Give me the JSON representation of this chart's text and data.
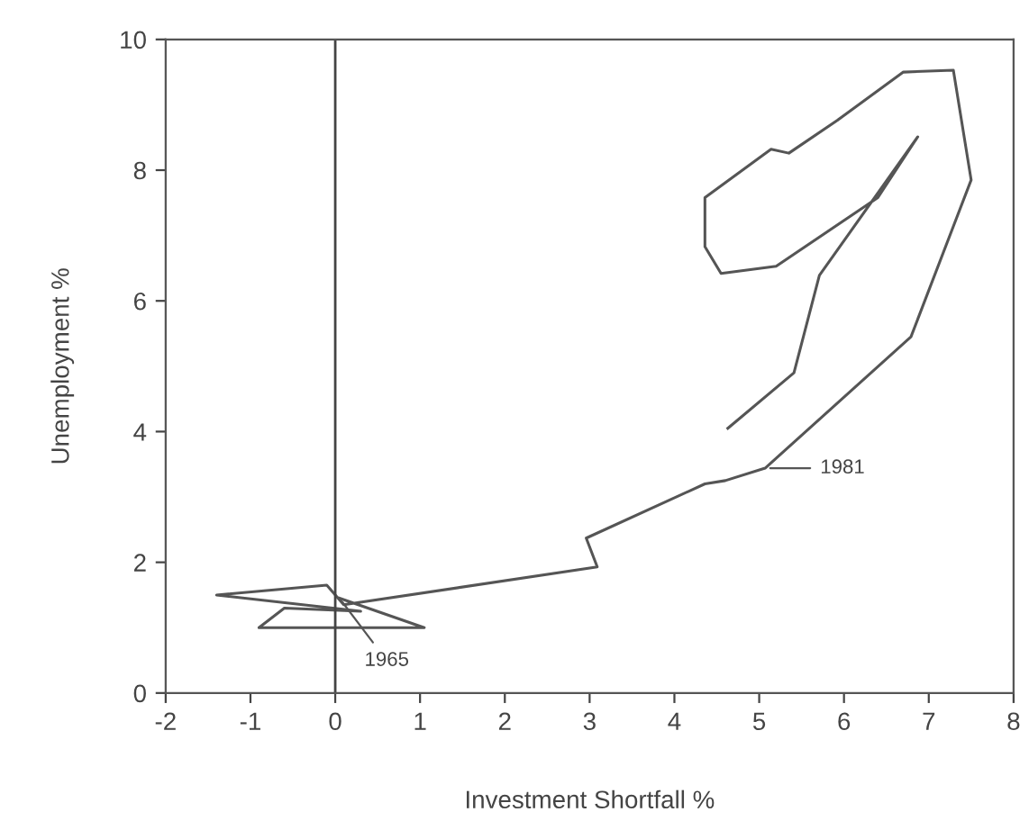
{
  "chart_data": {
    "type": "line",
    "xlabel": "Investment Shortfall %",
    "ylabel": "Unemployment %",
    "xlim": [
      -2,
      8
    ],
    "ylim": [
      0,
      10
    ],
    "xticks": [
      -2,
      -1,
      0,
      1,
      2,
      3,
      4,
      5,
      6,
      7,
      8
    ],
    "yticks": [
      0,
      2,
      4,
      6,
      8,
      10
    ],
    "grid": false,
    "legend": false,
    "marker": "none",
    "line_style": "solid",
    "ref_lines": [
      {
        "axis": "x",
        "value": 0,
        "color": "#444444"
      }
    ],
    "annotations": [
      {
        "text": "1965",
        "x": 0.05,
        "y": 1.45
      },
      {
        "text": "1981",
        "x": 5.07,
        "y": 3.44
      }
    ],
    "series": [
      {
        "color": "#555555",
        "x": [
          0.05,
          1.05,
          -0.9,
          -0.6,
          0.3,
          -1.4,
          -0.1,
          0.1,
          3.09,
          2.96,
          4.36,
          4.6,
          5.07,
          6.79,
          7.5,
          7.29,
          6.7,
          5.92,
          5.35,
          5.14,
          4.36,
          4.36,
          4.55,
          5.2,
          6.4,
          6.87,
          5.71,
          5.41,
          4.63
        ],
        "values": [
          1.45,
          1.0,
          1.0,
          1.3,
          1.25,
          1.5,
          1.65,
          1.35,
          1.93,
          2.37,
          3.2,
          3.25,
          3.44,
          5.45,
          7.85,
          9.53,
          9.5,
          8.76,
          8.26,
          8.32,
          7.58,
          6.83,
          6.42,
          6.53,
          7.58,
          8.51,
          6.39,
          4.9,
          4.05
        ]
      }
    ]
  }
}
